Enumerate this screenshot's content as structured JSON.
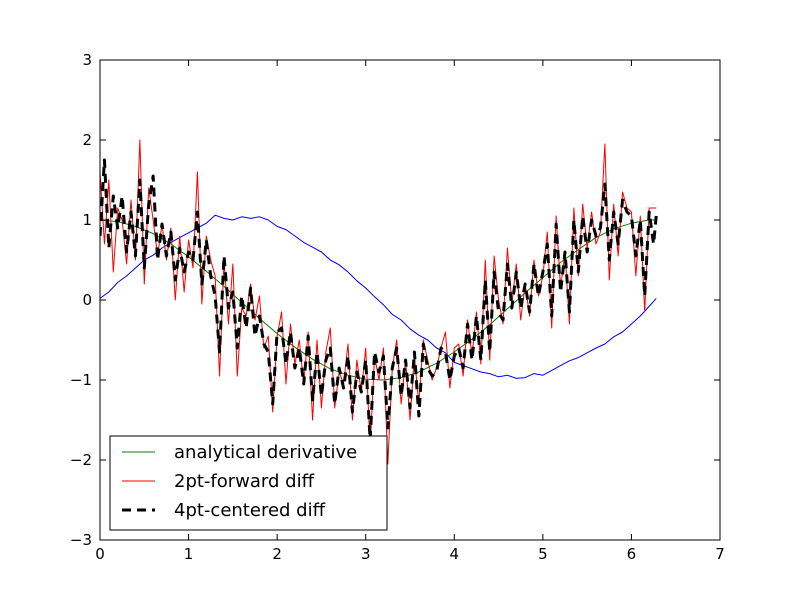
{
  "chart_data": {
    "type": "line",
    "xlim": [
      0,
      7
    ],
    "ylim": [
      -3,
      3
    ],
    "x_ticks": [
      0,
      1,
      2,
      3,
      4,
      5,
      6,
      7
    ],
    "y_ticks": [
      -3,
      -2,
      -1,
      0,
      1,
      2,
      3
    ],
    "x_tick_labels": [
      "0",
      "1",
      "2",
      "3",
      "4",
      "5",
      "6",
      "7"
    ],
    "y_tick_labels": [
      "−3",
      "−2",
      "−1",
      "0",
      "1",
      "2",
      "3"
    ],
    "grid": false,
    "legend_position": "lower left",
    "series": [
      {
        "key": "signal",
        "color": "#0000ff",
        "style": "solid",
        "x": [
          0,
          0.1,
          0.2,
          0.3,
          0.4,
          0.5,
          0.6,
          0.7,
          0.8,
          0.9,
          1.0,
          1.1,
          1.2,
          1.3,
          1.4,
          1.5,
          1.6,
          1.7,
          1.8,
          1.9,
          2.0,
          2.1,
          2.2,
          2.3,
          2.4,
          2.5,
          2.6,
          2.7,
          2.8,
          2.9,
          3.0,
          3.1,
          3.2,
          3.3,
          3.4,
          3.5,
          3.6,
          3.7,
          3.8,
          3.9,
          4.0,
          4.1,
          4.2,
          4.3,
          4.4,
          4.5,
          4.6,
          4.7,
          4.8,
          4.9,
          5.0,
          5.1,
          5.2,
          5.3,
          5.4,
          5.5,
          5.6,
          5.7,
          5.8,
          5.9,
          6.0,
          6.1,
          6.2,
          6.28
        ],
        "y": [
          0.02,
          0.1,
          0.22,
          0.3,
          0.4,
          0.5,
          0.56,
          0.65,
          0.72,
          0.78,
          0.84,
          0.9,
          0.96,
          1.06,
          1.02,
          1.0,
          1.04,
          1.02,
          1.04,
          1.0,
          0.92,
          0.88,
          0.8,
          0.72,
          0.66,
          0.6,
          0.5,
          0.44,
          0.35,
          0.24,
          0.15,
          0.04,
          -0.06,
          -0.18,
          -0.25,
          -0.36,
          -0.44,
          -0.5,
          -0.6,
          -0.66,
          -0.78,
          -0.82,
          -0.86,
          -0.9,
          -0.92,
          -0.96,
          -0.94,
          -0.98,
          -0.97,
          -0.92,
          -0.94,
          -0.88,
          -0.82,
          -0.76,
          -0.72,
          -0.66,
          -0.6,
          -0.55,
          -0.46,
          -0.4,
          -0.3,
          -0.2,
          -0.08,
          0.02
        ]
      },
      {
        "key": "analytical",
        "name": "analytical derivative",
        "color": "#008000",
        "style": "solid",
        "x": [
          0,
          0.2,
          0.4,
          0.6,
          0.8,
          1.0,
          1.2,
          1.4,
          1.6,
          1.8,
          2.0,
          2.2,
          2.4,
          2.6,
          2.8,
          3.0,
          3.2,
          3.4,
          3.6,
          3.8,
          4.0,
          4.2,
          4.4,
          4.6,
          4.8,
          5.0,
          5.2,
          5.4,
          5.6,
          5.8,
          6.0,
          6.2,
          6.28
        ],
        "y": [
          1.0,
          0.98,
          0.92,
          0.83,
          0.7,
          0.54,
          0.36,
          0.17,
          -0.03,
          -0.23,
          -0.42,
          -0.59,
          -0.74,
          -0.86,
          -0.94,
          -0.99,
          -1.0,
          -0.97,
          -0.9,
          -0.79,
          -0.65,
          -0.49,
          -0.31,
          -0.11,
          0.09,
          0.28,
          0.47,
          0.63,
          0.78,
          0.89,
          0.96,
          1.0,
          1.0
        ]
      },
      {
        "key": "forward",
        "name": "2pt-forward diff",
        "color": "#ff0000",
        "style": "solid",
        "x": [
          0,
          0.05,
          0.1,
          0.15,
          0.2,
          0.25,
          0.3,
          0.35,
          0.4,
          0.45,
          0.5,
          0.55,
          0.6,
          0.65,
          0.7,
          0.75,
          0.8,
          0.85,
          0.9,
          0.95,
          1.0,
          1.05,
          1.1,
          1.15,
          1.2,
          1.25,
          1.3,
          1.35,
          1.4,
          1.45,
          1.5,
          1.55,
          1.6,
          1.65,
          1.7,
          1.75,
          1.8,
          1.85,
          1.9,
          1.95,
          2.0,
          2.05,
          2.1,
          2.15,
          2.2,
          2.25,
          2.3,
          2.35,
          2.4,
          2.45,
          2.5,
          2.55,
          2.6,
          2.65,
          2.7,
          2.75,
          2.8,
          2.85,
          2.9,
          2.95,
          3.0,
          3.05,
          3.1,
          3.15,
          3.2,
          3.25,
          3.3,
          3.35,
          3.4,
          3.45,
          3.5,
          3.55,
          3.6,
          3.65,
          3.7,
          3.75,
          3.8,
          3.85,
          3.9,
          3.95,
          4.0,
          4.05,
          4.1,
          4.15,
          4.2,
          4.25,
          4.3,
          4.35,
          4.4,
          4.45,
          4.5,
          4.55,
          4.6,
          4.65,
          4.7,
          4.75,
          4.8,
          4.85,
          4.9,
          4.95,
          5.0,
          5.05,
          5.1,
          5.15,
          5.2,
          5.25,
          5.3,
          5.35,
          5.4,
          5.45,
          5.5,
          5.55,
          5.6,
          5.65,
          5.7,
          5.75,
          5.8,
          5.85,
          5.9,
          5.95,
          6.0,
          6.05,
          6.1,
          6.15,
          6.2,
          6.25,
          6.28
        ],
        "y": [
          1.6,
          0.7,
          1.5,
          0.35,
          1.15,
          1.0,
          0.45,
          1.25,
          0.5,
          2.0,
          0.2,
          1.4,
          1.0,
          0.55,
          0.95,
          0.5,
          0.9,
          0.0,
          0.8,
          0.1,
          0.75,
          0.4,
          1.6,
          -0.05,
          0.8,
          0.5,
          0.3,
          -0.95,
          0.5,
          -0.3,
          0.45,
          -0.95,
          -0.1,
          -0.2,
          0.2,
          -0.25,
          0.05,
          -0.6,
          -0.45,
          -1.4,
          -0.45,
          -0.15,
          -1.05,
          -0.3,
          -0.8,
          -0.5,
          -1.05,
          -0.4,
          -1.5,
          -0.5,
          -1.35,
          -0.65,
          -0.35,
          -1.35,
          -0.9,
          -1.05,
          -0.55,
          -1.5,
          -0.75,
          -1.15,
          -0.6,
          -1.85,
          -0.7,
          -1.0,
          -0.6,
          -2.05,
          -0.85,
          -0.5,
          -1.3,
          -0.75,
          -1.5,
          -0.7,
          -1.3,
          -0.5,
          -0.75,
          -1.0,
          -0.85,
          -0.6,
          -0.4,
          -1.1,
          -0.6,
          -0.55,
          -0.95,
          -0.25,
          -0.7,
          -0.15,
          -0.8,
          0.5,
          -0.75,
          0.55,
          0.0,
          -0.3,
          0.65,
          -0.05,
          0.45,
          -0.25,
          0.2,
          -0.2,
          0.5,
          0.05,
          0.3,
          0.85,
          -0.35,
          1.05,
          0.15,
          0.6,
          -0.3,
          1.15,
          0.3,
          1.2,
          0.65,
          1.1,
          0.7,
          0.85,
          1.95,
          0.25,
          1.2,
          0.55,
          1.35,
          1.15,
          1.1,
          0.3,
          1.05,
          -0.15,
          1.15,
          1.15,
          1.15
        ]
      },
      {
        "key": "centered",
        "name": "4pt-centered diff",
        "color": "#000000",
        "style": "dashed",
        "x": [
          0,
          0.05,
          0.1,
          0.15,
          0.2,
          0.25,
          0.3,
          0.35,
          0.4,
          0.45,
          0.5,
          0.55,
          0.6,
          0.65,
          0.7,
          0.75,
          0.8,
          0.85,
          0.9,
          0.95,
          1.0,
          1.05,
          1.1,
          1.15,
          1.2,
          1.25,
          1.3,
          1.35,
          1.4,
          1.45,
          1.5,
          1.55,
          1.6,
          1.65,
          1.7,
          1.75,
          1.8,
          1.85,
          1.9,
          1.95,
          2.0,
          2.05,
          2.1,
          2.15,
          2.2,
          2.25,
          2.3,
          2.35,
          2.4,
          2.45,
          2.5,
          2.55,
          2.6,
          2.65,
          2.7,
          2.75,
          2.8,
          2.85,
          2.9,
          2.95,
          3.0,
          3.05,
          3.1,
          3.15,
          3.2,
          3.25,
          3.3,
          3.35,
          3.4,
          3.45,
          3.5,
          3.55,
          3.6,
          3.65,
          3.7,
          3.75,
          3.8,
          3.85,
          3.9,
          3.95,
          4.0,
          4.05,
          4.1,
          4.15,
          4.2,
          4.25,
          4.3,
          4.35,
          4.4,
          4.45,
          4.5,
          4.55,
          4.6,
          4.65,
          4.7,
          4.75,
          4.8,
          4.85,
          4.9,
          4.95,
          5.0,
          5.05,
          5.1,
          5.15,
          5.2,
          5.25,
          5.3,
          5.35,
          5.4,
          5.45,
          5.5,
          5.55,
          5.6,
          5.65,
          5.7,
          5.75,
          5.8,
          5.85,
          5.9,
          5.95,
          6.0,
          6.05,
          6.1,
          6.15,
          6.2,
          6.25,
          6.28
        ],
        "y": [
          0.8,
          1.75,
          0.65,
          1.3,
          0.9,
          1.3,
          0.6,
          1.1,
          0.55,
          1.5,
          0.4,
          1.2,
          1.55,
          0.5,
          0.95,
          0.55,
          0.85,
          0.25,
          0.65,
          0.35,
          0.6,
          0.5,
          1.1,
          0.2,
          0.75,
          0.3,
          0.05,
          -0.65,
          0.55,
          -0.1,
          0.1,
          -0.6,
          0.05,
          -0.35,
          0.15,
          -0.45,
          -0.2,
          -0.55,
          -0.65,
          -1.3,
          -0.4,
          -0.35,
          -0.8,
          -0.4,
          -0.85,
          -0.6,
          -1.05,
          -0.45,
          -1.25,
          -0.65,
          -1.2,
          -0.75,
          -0.6,
          -1.3,
          -0.85,
          -1.1,
          -0.7,
          -1.4,
          -0.9,
          -1.15,
          -0.75,
          -1.75,
          -0.65,
          -0.9,
          -0.7,
          -1.6,
          -0.85,
          -0.6,
          -1.2,
          -0.75,
          -1.35,
          -0.65,
          -1.45,
          -0.55,
          -0.85,
          -0.95,
          -0.9,
          -0.6,
          -0.65,
          -1.0,
          -0.7,
          -0.6,
          -0.85,
          -0.3,
          -0.75,
          -0.2,
          -0.75,
          0.25,
          -0.65,
          0.35,
          -0.15,
          -0.25,
          0.45,
          -0.1,
          0.35,
          -0.1,
          0.2,
          -0.15,
          0.45,
          0.05,
          0.35,
          0.7,
          -0.2,
          0.95,
          0.1,
          0.6,
          -0.15,
          1.0,
          0.35,
          1.05,
          0.6,
          1.0,
          0.8,
          0.9,
          1.45,
          0.5,
          1.1,
          0.7,
          1.25,
          1.1,
          1.05,
          0.55,
          1.0,
          0.05,
          1.1,
          0.7,
          1.05
        ]
      }
    ]
  }
}
